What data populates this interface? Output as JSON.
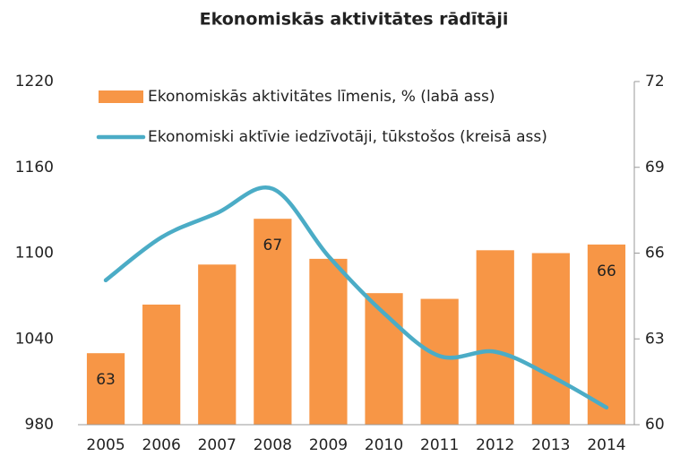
{
  "chart_data": {
    "type": "bar_line",
    "title": "Ekonomiskās aktivitātes rādītāji",
    "categories": [
      "2005",
      "2006",
      "2007",
      "2008",
      "2009",
      "2010",
      "2011",
      "2012",
      "2013",
      "2014"
    ],
    "series": [
      {
        "name": "Ekonomiskās aktivitātes līmenis, % (labā ass)",
        "type": "bar",
        "axis": "y2",
        "color": "#f79646",
        "values": [
          62.5,
          64.2,
          65.6,
          67.2,
          65.8,
          64.6,
          64.4,
          66.1,
          66.0,
          66.3
        ],
        "value_labels": [
          "63",
          null,
          null,
          "67",
          null,
          null,
          null,
          null,
          null,
          "66"
        ]
      },
      {
        "name": "Ekonomiski aktīvie iedzīvotāji, tūkstošos (kreisā ass)",
        "type": "line",
        "axis": "y",
        "color": "#4bacc6",
        "values": [
          1081,
          1111,
          1128,
          1145,
          1098,
          1058,
          1028,
          1031,
          1014,
          992
        ]
      }
    ],
    "ylim": [
      980,
      1220
    ],
    "yticks": [
      980,
      1040,
      1100,
      1160,
      1220
    ],
    "y2lim": [
      60,
      72
    ],
    "y2ticks": [
      60,
      63,
      66,
      69,
      72
    ],
    "legend": "top-left"
  }
}
